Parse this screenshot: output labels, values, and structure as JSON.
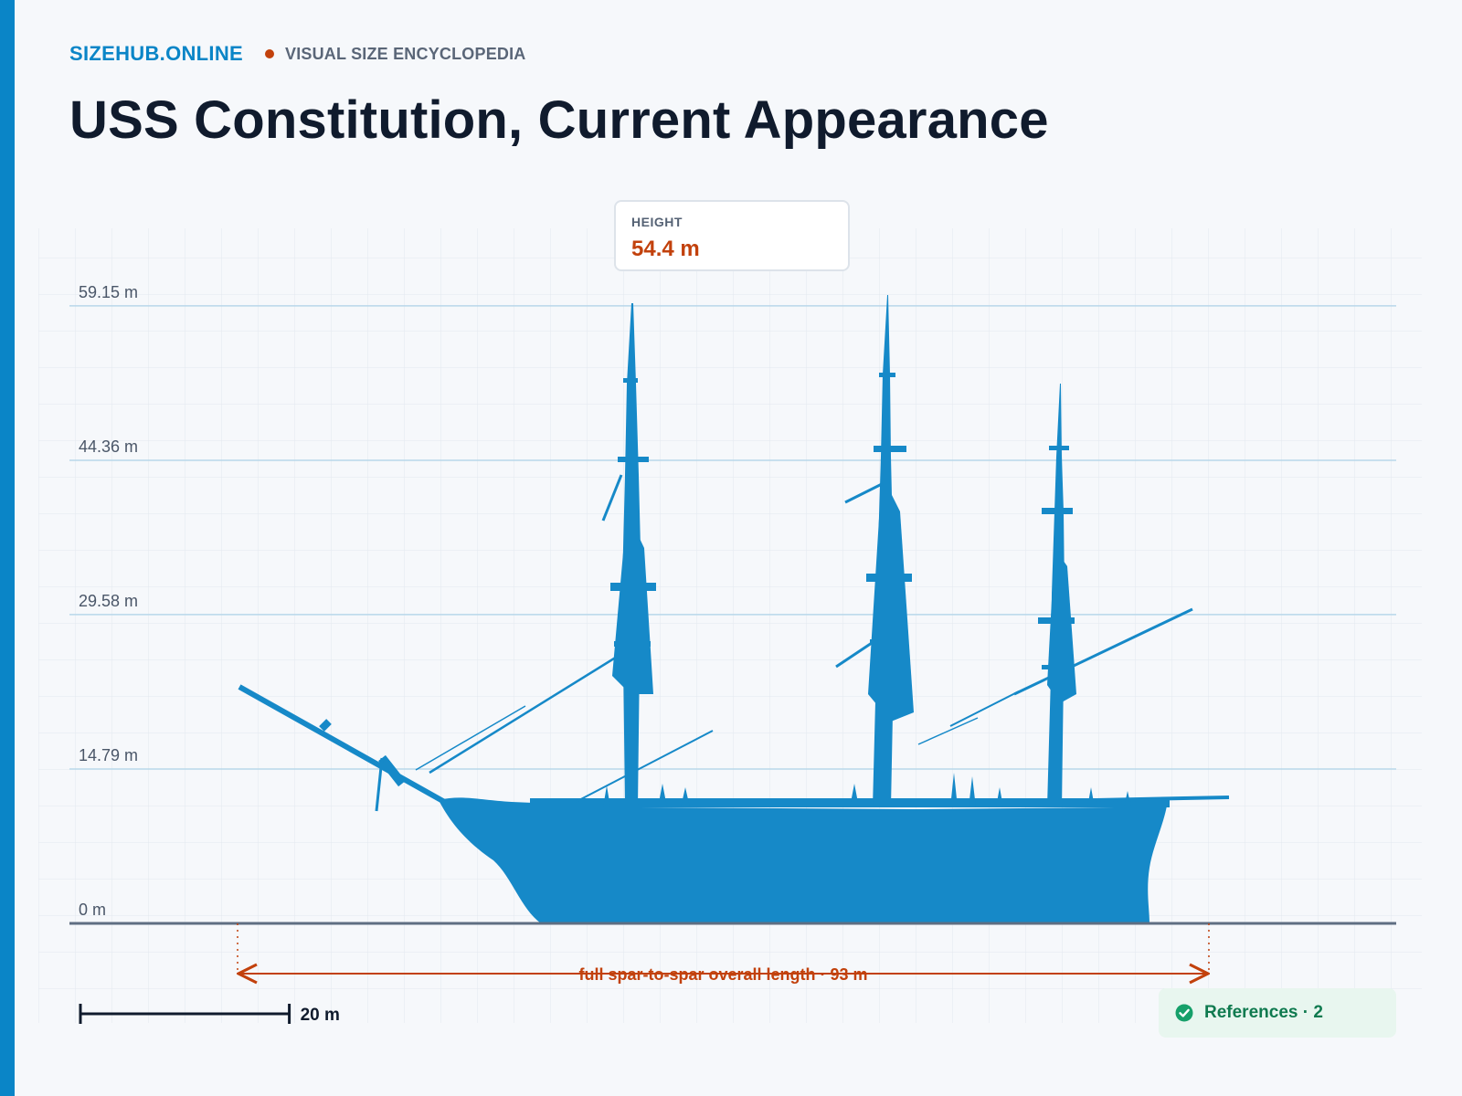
{
  "header": {
    "brand": "SIZEHUB.ONLINE",
    "tagline": "VISUAL SIZE ENCYCLOPEDIA",
    "title": "USS Constitution, Current Appearance"
  },
  "height_card": {
    "label": "HEIGHT",
    "value": "54.4 m"
  },
  "y_axis": {
    "ticks": [
      {
        "value": 0,
        "label": "0 m"
      },
      {
        "value": 14.79,
        "label": "14.79 m"
      },
      {
        "value": 29.58,
        "label": "29.58 m"
      },
      {
        "value": 44.36,
        "label": "44.36 m"
      },
      {
        "value": 59.15,
        "label": "59.15 m"
      }
    ]
  },
  "length_dimension": {
    "label": "full spar-to-spar overall length · 93 m",
    "value_m": 93
  },
  "scale_bar": {
    "label": "20 m",
    "length_m": 20
  },
  "references": {
    "label": "References · 2",
    "icon": "check-circle-icon"
  },
  "subject": {
    "height_m": 54.4,
    "icon": "sailing-ship-silhouette"
  },
  "colors": {
    "accent": "#0a85c7",
    "silhouette": "#1689c8",
    "dimension": "#c2410c",
    "title": "#101b2d",
    "references": "#0f7a4f"
  }
}
